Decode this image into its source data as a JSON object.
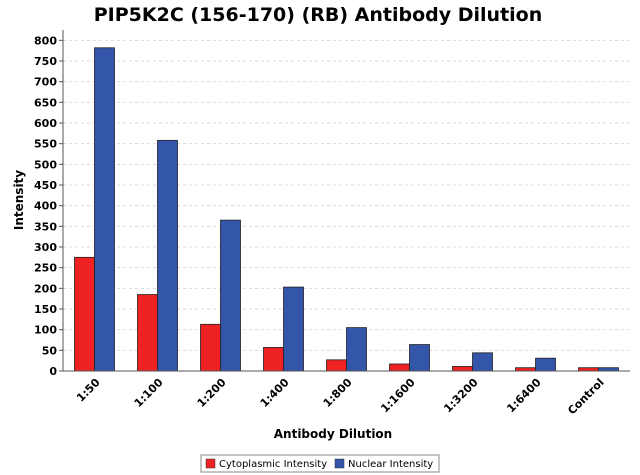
{
  "chart_data": {
    "type": "bar",
    "title": "PIP5K2C (156-170) (RB) Antibody Dilution",
    "xlabel": "Antibody Dilution",
    "ylabel": "Intensity",
    "categories": [
      "1:50",
      "1:100",
      "1:200",
      "1:400",
      "1:800",
      "1:1600",
      "1:3200",
      "1:6400",
      "Control"
    ],
    "series": [
      {
        "name": "Cytoplasmic Intensity",
        "color": "#ee2222",
        "values": [
          275,
          185,
          113,
          57,
          27,
          17,
          11,
          8,
          8
        ]
      },
      {
        "name": "Nuclear Intensity",
        "color": "#3355aa",
        "values": [
          782,
          558,
          365,
          203,
          105,
          64,
          44,
          31,
          8
        ]
      }
    ],
    "ylim": [
      0,
      825
    ],
    "yticks": [
      0,
      50,
      100,
      150,
      200,
      250,
      300,
      350,
      400,
      450,
      500,
      550,
      600,
      650,
      700,
      750,
      800
    ],
    "grid": true,
    "legend": "bottom-center"
  }
}
